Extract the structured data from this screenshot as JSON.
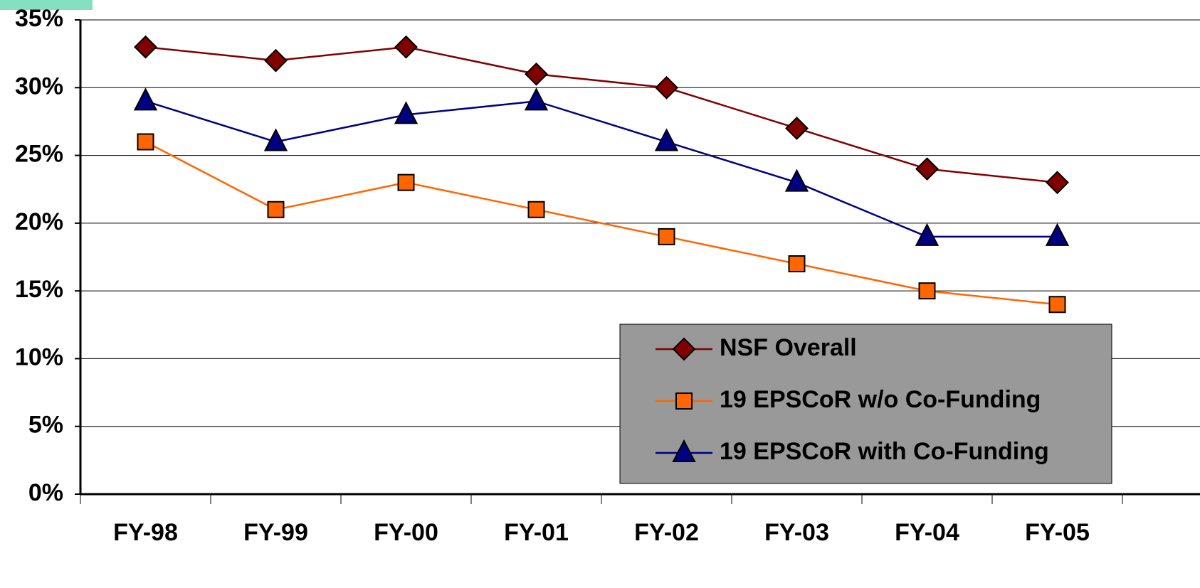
{
  "chart_data": {
    "type": "line",
    "categories": [
      "FY-98",
      "FY-99",
      "FY-00",
      "FY-01",
      "FY-02",
      "FY-03",
      "FY-04",
      "FY-05"
    ],
    "series": [
      {
        "name": "NSF Overall",
        "color": "#800000",
        "marker": "diamond",
        "values": [
          33,
          32,
          33,
          31,
          30,
          27,
          24,
          23
        ]
      },
      {
        "name": "19 EPSCoR w/o Co-Funding",
        "color": "#ff6600",
        "marker": "square",
        "values": [
          26,
          21,
          23,
          21,
          19,
          17,
          15,
          14
        ]
      },
      {
        "name": "19 EPSCoR with Co-Funding",
        "color": "#000080",
        "marker": "triangle",
        "values": [
          29,
          26,
          28,
          29,
          26,
          23,
          19,
          19
        ]
      }
    ],
    "ylim": [
      0,
      35
    ],
    "yticks": [
      {
        "value": 0,
        "label": "0%"
      },
      {
        "value": 5,
        "label": "5%"
      },
      {
        "value": 10,
        "label": "10%"
      },
      {
        "value": 15,
        "label": "15%"
      },
      {
        "value": 20,
        "label": "20%"
      },
      {
        "value": 25,
        "label": "25%"
      },
      {
        "value": 30,
        "label": "30%"
      },
      {
        "value": 35,
        "label": "35%"
      }
    ],
    "grid": true,
    "legend": "lower right"
  }
}
